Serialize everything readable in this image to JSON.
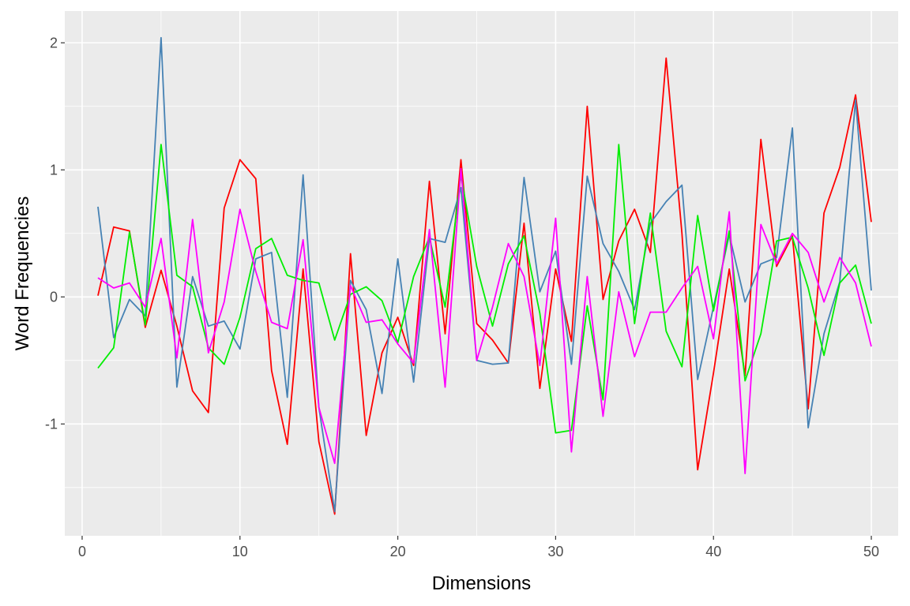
{
  "chart_data": {
    "type": "line",
    "title": "",
    "xlabel": "Dimensions",
    "ylabel": "Word Frequencies",
    "xlim": [
      -1.1,
      51.7
    ],
    "ylim": [
      -1.88,
      2.25
    ],
    "xticks": [
      0,
      10,
      20,
      30,
      40,
      50
    ],
    "yticks": [
      -1,
      0,
      1,
      2
    ],
    "grid": true,
    "legend": "none",
    "x": [
      1,
      2,
      3,
      4,
      5,
      6,
      7,
      8,
      9,
      10,
      11,
      12,
      13,
      14,
      15,
      16,
      17,
      18,
      19,
      20,
      21,
      22,
      23,
      24,
      25,
      26,
      27,
      28,
      29,
      30,
      31,
      32,
      33,
      34,
      35,
      36,
      37,
      38,
      39,
      40,
      41,
      42,
      43,
      44,
      45,
      46,
      47,
      48,
      49,
      50
    ],
    "series": [
      {
        "color": "#FF0000",
        "values": [
          0.01,
          0.55,
          0.52,
          -0.24,
          0.21,
          -0.23,
          -0.74,
          -0.91,
          0.7,
          1.08,
          0.93,
          -0.58,
          -1.16,
          0.22,
          -1.14,
          -1.71,
          0.34,
          -1.09,
          -0.44,
          -0.16,
          -0.54,
          0.91,
          -0.29,
          1.08,
          -0.21,
          -0.34,
          -0.52,
          0.58,
          -0.72,
          0.22,
          -0.35,
          1.5,
          -0.02,
          0.44,
          0.69,
          0.35,
          1.88,
          0.5,
          -1.36,
          -0.6,
          0.22,
          -0.62,
          1.24,
          0.24,
          0.48,
          -0.88,
          0.66,
          1.02,
          1.59,
          0.59
        ]
      },
      {
        "color": "#4682B4",
        "values": [
          0.71,
          -0.32,
          -0.02,
          -0.15,
          2.04,
          -0.71,
          0.16,
          -0.23,
          -0.19,
          -0.41,
          0.3,
          0.35,
          -0.79,
          0.96,
          -0.87,
          -1.69,
          0.13,
          -0.1,
          -0.76,
          0.3,
          -0.67,
          0.46,
          0.43,
          0.86,
          -0.5,
          -0.53,
          -0.52,
          0.94,
          0.04,
          0.36,
          -0.53,
          0.95,
          0.42,
          0.2,
          -0.1,
          0.58,
          0.75,
          0.88,
          -0.65,
          -0.08,
          0.49,
          -0.04,
          0.26,
          0.31,
          1.33,
          -1.03,
          -0.29,
          0.12,
          1.55,
          0.05
        ]
      },
      {
        "color": "#00EE00",
        "values": [
          -0.56,
          -0.4,
          0.51,
          -0.22,
          1.2,
          0.17,
          0.08,
          -0.4,
          -0.53,
          -0.16,
          0.38,
          0.46,
          0.17,
          0.13,
          0.11,
          -0.34,
          0.02,
          0.08,
          -0.03,
          -0.36,
          0.16,
          0.47,
          -0.08,
          0.96,
          0.24,
          -0.23,
          0.26,
          0.48,
          -0.13,
          -1.07,
          -1.05,
          -0.07,
          -0.81,
          1.2,
          -0.21,
          0.66,
          -0.27,
          -0.55,
          0.64,
          -0.11,
          0.52,
          -0.66,
          -0.29,
          0.44,
          0.47,
          0.07,
          -0.46,
          0.11,
          0.25,
          -0.21
        ]
      },
      {
        "color": "#FF00FF",
        "values": [
          0.15,
          0.07,
          0.11,
          -0.08,
          0.46,
          -0.48,
          0.61,
          -0.44,
          -0.04,
          0.69,
          0.2,
          -0.2,
          -0.25,
          0.45,
          -0.87,
          -1.31,
          0.09,
          -0.2,
          -0.18,
          -0.37,
          -0.52,
          0.53,
          -0.71,
          1.01,
          -0.5,
          -0.08,
          0.42,
          0.16,
          -0.54,
          0.62,
          -1.22,
          0.16,
          -0.94,
          0.04,
          -0.47,
          -0.12,
          -0.12,
          0.07,
          0.24,
          -0.33,
          0.67,
          -1.39,
          0.57,
          0.26,
          0.5,
          0.35,
          -0.04,
          0.31,
          0.11,
          -0.39
        ]
      }
    ]
  }
}
